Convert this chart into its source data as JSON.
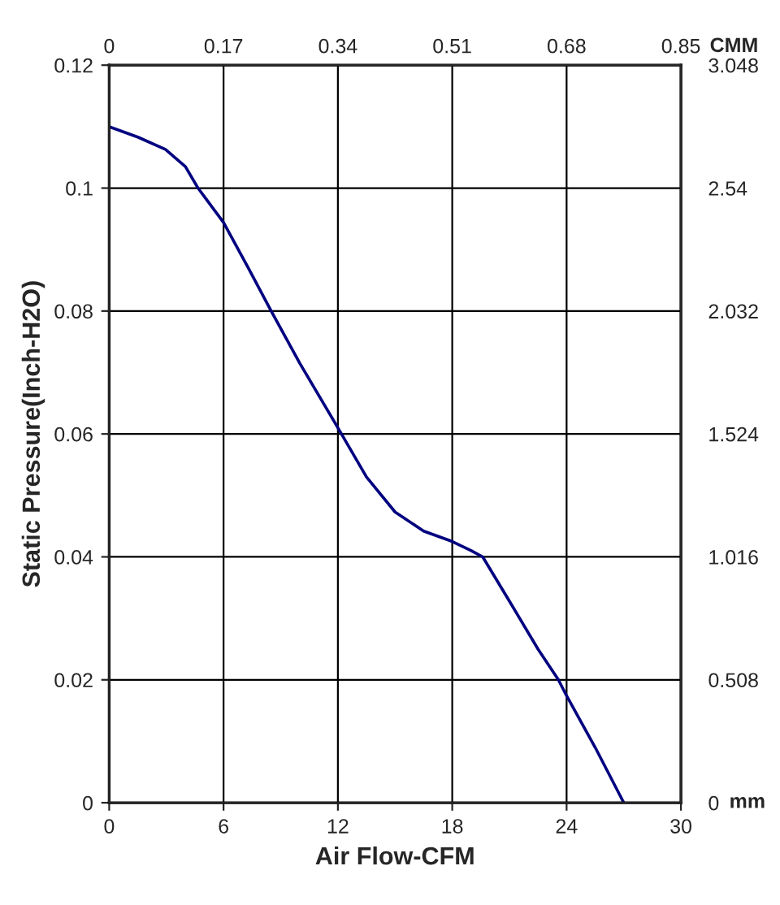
{
  "chart_data": {
    "type": "line",
    "xlabel": "Air Flow-CFM",
    "ylabel": "Static Pressure(Inch-H2O)",
    "x2label": "CMM",
    "y2label": "mm",
    "xlim": [
      0,
      30
    ],
    "xticks": [
      0,
      6,
      12,
      18,
      24,
      30
    ],
    "ylim": [
      0,
      0.12
    ],
    "yticks": [
      0,
      0.02,
      0.04,
      0.06,
      0.08,
      0.1,
      0.12
    ],
    "x2lim": [
      0,
      0.85
    ],
    "x2ticks": [
      0,
      0.17,
      0.34,
      0.51,
      0.68,
      0.85
    ],
    "y2lim": [
      0,
      3.048
    ],
    "y2ticks": [
      0,
      0.508,
      1.016,
      1.524,
      2.032,
      2.54,
      3.048
    ],
    "grid": true,
    "line_style": "solid",
    "series": [
      {
        "color": "#000080",
        "x": [
          0,
          1.5,
          2.95,
          4,
          4.66,
          6,
          7.3,
          8.5,
          10,
          12,
          13.5,
          15,
          16.5,
          18,
          19,
          19.6,
          21,
          22.5,
          23.57,
          24,
          25.5,
          27
        ],
        "values": [
          0.11,
          0.1083,
          0.1063,
          0.1035,
          0.1,
          0.0944,
          0.087,
          0.08,
          0.0715,
          0.061,
          0.053,
          0.0473,
          0.0442,
          0.0425,
          0.041,
          0.04,
          0.0328,
          0.025,
          0.02,
          0.0174,
          0.009,
          0
        ]
      }
    ]
  }
}
